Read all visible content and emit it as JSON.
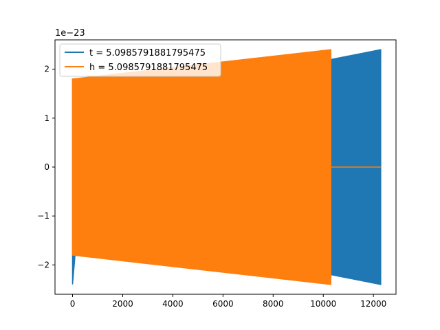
{
  "chart_data": {
    "type": "line",
    "title": "",
    "xlabel": "",
    "ylabel": "",
    "y_offset_label": "1e−23",
    "xlim": [
      -700,
      12900
    ],
    "ylim": [
      -2.6,
      2.6
    ],
    "x_ticks": [
      0,
      2000,
      4000,
      6000,
      8000,
      10000,
      12000
    ],
    "x_tick_labels": [
      "0",
      "2000",
      "4000",
      "6000",
      "8000",
      "10000",
      "12000"
    ],
    "y_ticks": [
      -2,
      -1,
      0,
      1,
      2
    ],
    "y_tick_labels": [
      "−2",
      "−1",
      "0",
      "1",
      "2"
    ],
    "grid": false,
    "legend_position": "upper-left",
    "series": [
      {
        "name": "t = 5.0985791881795475",
        "color": "#1f77b4",
        "x_start": 0,
        "x_end": 12290,
        "envelope_upper": [
          [
            0,
            1.8
          ],
          [
            10300,
            2.2
          ],
          [
            12290,
            2.4
          ]
        ],
        "envelope_lower": [
          [
            0,
            -2.4
          ],
          [
            100,
            -1.8
          ],
          [
            10300,
            -2.2
          ],
          [
            12290,
            -2.4
          ]
        ]
      },
      {
        "name": "h = 5.0985791881795475",
        "color": "#ff7f0e",
        "x_start": 0,
        "x_end": 10300,
        "envelope_upper": [
          [
            0,
            1.8
          ],
          [
            10300,
            2.4
          ]
        ],
        "envelope_lower": [
          [
            0,
            -1.8
          ],
          [
            10300,
            -2.4
          ]
        ],
        "tail": [
          [
            10300,
            0
          ],
          [
            12290,
            0
          ]
        ]
      }
    ]
  }
}
